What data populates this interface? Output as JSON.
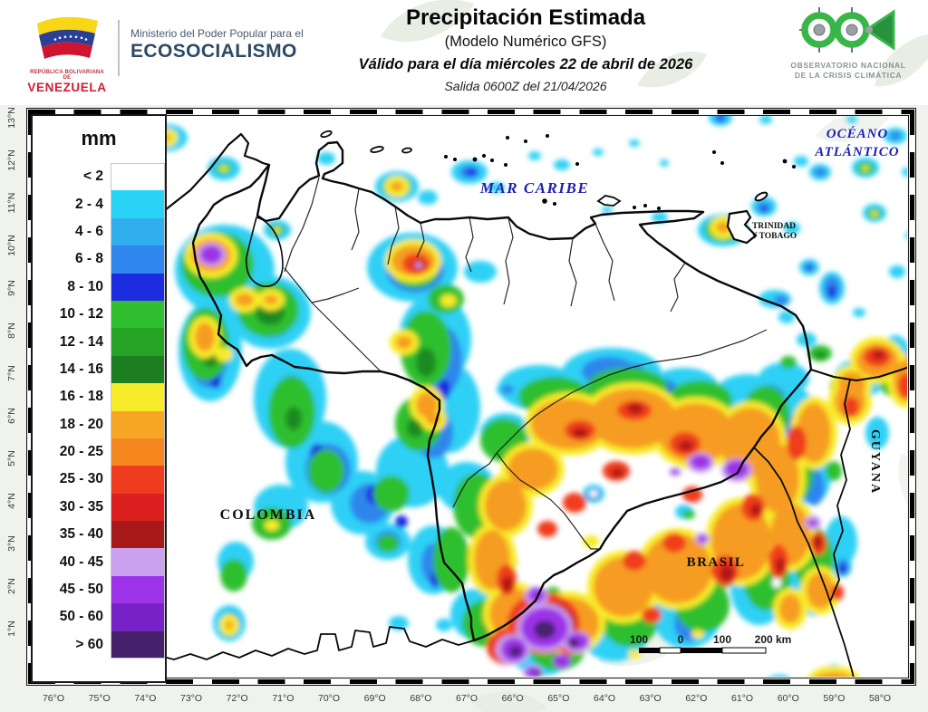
{
  "header": {
    "left_logo": {
      "country_small": "REPÚBLICA BOLIVARIANA DE",
      "country": "VENEZUELA",
      "ministry_line1": "Ministerio del Poder Popular para el",
      "ministry_line2": "ECOSOCIALISMO"
    },
    "title": "Precipitación Estimada",
    "subtitle": "(Modelo Numérico GFS)",
    "valid_line": "Válido para el día miércoles 22 de abril de 2026",
    "run_line": "Salida 0600Z del 21/04/2026",
    "right_logo": {
      "line1": "OBSERVATORIO NACIONAL",
      "line2": "DE LA CRISIS CLIMÁTICA"
    }
  },
  "legend": {
    "title": "mm",
    "entries": [
      {
        "label": "< 2",
        "color": "#FFFFFF"
      },
      {
        "label": "2 - 4",
        "color": "#29D3F6"
      },
      {
        "label": "4 - 6",
        "color": "#30AEEE"
      },
      {
        "label": "6 - 8",
        "color": "#2F86EC"
      },
      {
        "label": "8 - 10",
        "color": "#1C2BE0"
      },
      {
        "label": "10 - 12",
        "color": "#2FBF2F"
      },
      {
        "label": "12 - 14",
        "color": "#25A325"
      },
      {
        "label": "14 - 16",
        "color": "#1C7E21"
      },
      {
        "label": "16 - 18",
        "color": "#F8EB29"
      },
      {
        "label": "18 - 20",
        "color": "#F6A524"
      },
      {
        "label": "20 - 25",
        "color": "#F6861E"
      },
      {
        "label": "25 - 30",
        "color": "#F03C1E"
      },
      {
        "label": "30 - 35",
        "color": "#DC1F1F"
      },
      {
        "label": "35 - 40",
        "color": "#A81A1A"
      },
      {
        "label": "40 - 45",
        "color": "#C9A1EF"
      },
      {
        "label": "45 - 50",
        "color": "#9C33E8"
      },
      {
        "label": "50 - 60",
        "color": "#7722C8"
      },
      {
        "label": "> 60",
        "color": "#45216B"
      }
    ]
  },
  "map": {
    "sea_labels": {
      "caribbean": "MAR CARIBE",
      "atlantic_line1": "OCÉANO",
      "atlantic_line2": "ATLÁNTICO"
    },
    "region_labels": {
      "colombia": "COLOMBIA",
      "brasil": "BRASIL",
      "guyana": "GUYANA",
      "trinidad_line1": "TRINIDAD",
      "trinidad_line2": "Y TOBAGO"
    },
    "scale_bar": {
      "labels": [
        "100",
        "0",
        "100",
        "200 km"
      ]
    },
    "lon_labels": [
      "76°O",
      "75°O",
      "74°O",
      "73°O",
      "72°O",
      "71°O",
      "70°O",
      "69°O",
      "68°O",
      "67°O",
      "66°O",
      "65°O",
      "64°O",
      "63°O",
      "62°O",
      "61°O",
      "60°O",
      "59°O",
      "58°O"
    ],
    "lat_labels": [
      "13°N",
      "12°N",
      "11°N",
      "10°N",
      "9°N",
      "8°N",
      "7°N",
      "6°N",
      "5°N",
      "4°N",
      "3°N",
      "2°N",
      "1°N"
    ]
  },
  "colors": {
    "sea_label": "#2121B2",
    "venezuela_red": "#D01C2E",
    "ministry_blue": "#2D4A63",
    "observatory_green": "#39B54A"
  }
}
